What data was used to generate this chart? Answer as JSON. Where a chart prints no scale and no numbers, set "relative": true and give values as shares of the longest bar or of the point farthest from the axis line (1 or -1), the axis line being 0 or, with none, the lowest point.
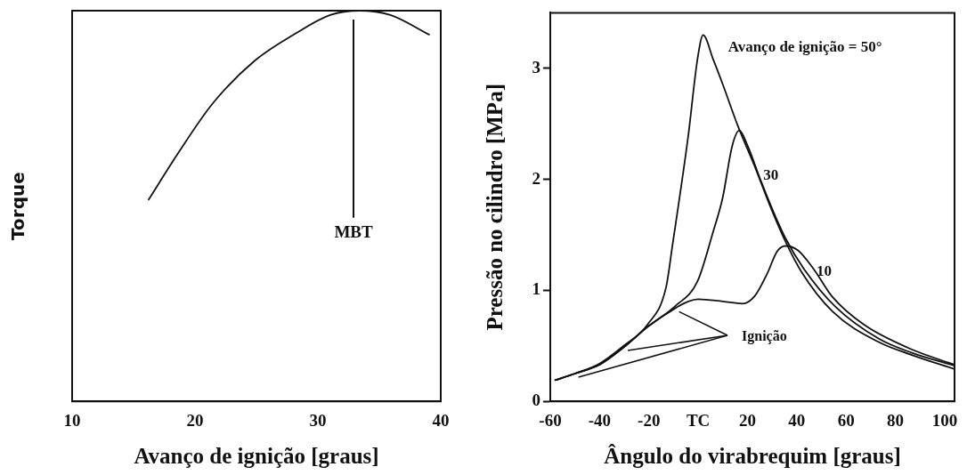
{
  "chart_data": [
    {
      "type": "line",
      "xlabel": "Avanço de ignição [graus]",
      "ylabel": "Torque",
      "relative": true,
      "x": [
        16.2,
        18.6,
        21.4,
        24.9,
        28.2,
        31.0,
        33.4,
        35.9,
        39.1
      ],
      "values": [
        0.515,
        0.634,
        0.761,
        0.873,
        0.942,
        0.989,
        1.0,
        0.989,
        0.938
      ],
      "color": "#111111",
      "xlim": [
        10,
        40
      ],
      "xticks": [
        10,
        20,
        30,
        40
      ],
      "ref_lines": [
        {
          "axis": "x",
          "value": 32.9,
          "label": "MBT"
        }
      ]
    },
    {
      "type": "line",
      "xlabel": "Ângulo do virabrequim [graus]",
      "ylabel": "Pressão no cilindro [MPa]",
      "xlim": [
        -60,
        104
      ],
      "xticks": [
        -60,
        -40,
        -20,
        {
          "value": 0,
          "label": "TC"
        },
        20,
        40,
        60,
        80,
        100
      ],
      "ylim": [
        0,
        3.5
      ],
      "yticks": [
        0,
        1,
        2,
        3
      ],
      "series": [
        {
          "name": "Avanço de ignição = 50°",
          "color": "#111111",
          "x": [
            -58.2,
            -50,
            -40,
            -30.2,
            -20.6,
            -13,
            -10.4,
            -4.1,
            -0.3,
            2.0,
            6.1,
            9.9,
            16.3,
            22.7,
            29,
            35.4,
            41.8,
            54.5,
            73.6,
            86.4,
            104
          ],
          "values": [
            0.19,
            0.25,
            0.34,
            0.5,
            0.69,
            1.03,
            1.41,
            2.38,
            3.08,
            3.3,
            3.08,
            2.86,
            2.47,
            2.13,
            1.77,
            1.44,
            1.17,
            0.81,
            0.53,
            0.42,
            0.29
          ]
        },
        {
          "name": "30",
          "color": "#111111",
          "x": [
            -58.2,
            -50,
            -40,
            -30,
            -20.6,
            -9.2,
            -0.3,
            6.1,
            9.9,
            13.8,
            16.7,
            20.1,
            25.2,
            30.3,
            35.4,
            43,
            55.8,
            73.6,
            86.4,
            104
          ],
          "values": [
            0.19,
            0.25,
            0.33,
            0.49,
            0.67,
            0.86,
            1.08,
            1.53,
            1.83,
            2.3,
            2.44,
            2.3,
            2.0,
            1.72,
            1.47,
            1.19,
            0.85,
            0.56,
            0.44,
            0.32
          ]
        },
        {
          "name": "10",
          "color": "#111111",
          "x": [
            -58.2,
            -50,
            -40,
            -30,
            -20.6,
            -9.2,
            -4,
            0,
            10,
            18,
            23,
            28,
            32,
            35.4,
            40.5,
            46.9,
            54.5,
            67.3,
            86.4,
            104
          ],
          "values": [
            0.19,
            0.25,
            0.33,
            0.49,
            0.67,
            0.84,
            0.9,
            0.92,
            0.9,
            0.88,
            0.95,
            1.15,
            1.35,
            1.4,
            1.36,
            1.19,
            0.94,
            0.69,
            0.47,
            0.33
          ]
        }
      ],
      "annotations": [
        "Ignição"
      ]
    }
  ]
}
